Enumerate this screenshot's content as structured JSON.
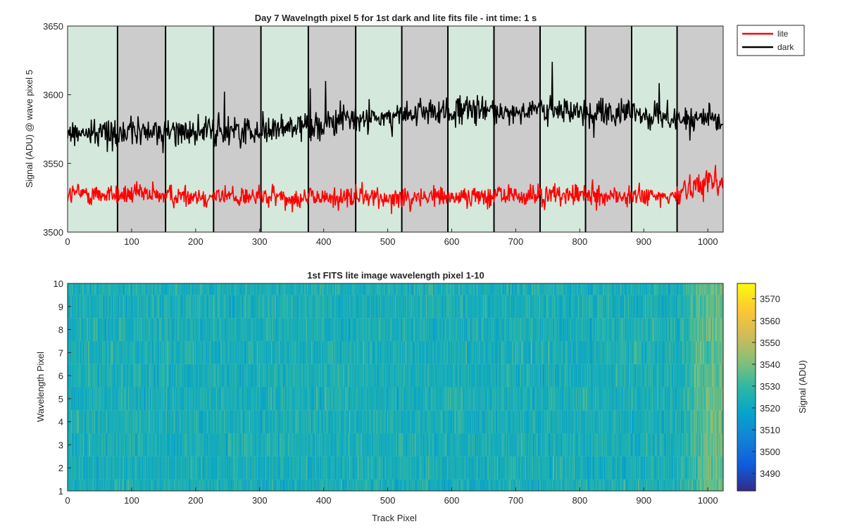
{
  "chart_data": [
    {
      "type": "line",
      "title": "Day 7 Wavelngth pixel 5 for 1st dark and lite fits file - int time: 1 s",
      "xlabel": "",
      "ylabel": "Signal (ADU) @ wave pixel 5",
      "xlim": [
        0,
        1024
      ],
      "ylim": [
        3500,
        3650
      ],
      "xticks": [
        0,
        100,
        200,
        300,
        400,
        500,
        600,
        700,
        800,
        900,
        1000
      ],
      "yticks": [
        3500,
        3550,
        3600,
        3650
      ],
      "grid": false,
      "legend_position": "outside-top-right",
      "background_bands": {
        "boundaries": [
          0,
          78,
          153,
          228,
          302,
          376,
          450,
          522,
          594,
          666,
          738,
          809,
          881,
          952,
          1024
        ],
        "colors": [
          "#d5e8dc",
          "#cccccc"
        ],
        "divider_color": "#000000"
      },
      "series": [
        {
          "name": "lite",
          "color": "#ff0000",
          "noise_amplitude": 7,
          "anchors": [
            [
              0,
              3528
            ],
            [
              400,
              3525
            ],
            [
              800,
              3527
            ],
            [
              950,
              3525
            ],
            [
              965,
              3532
            ],
            [
              1000,
              3538
            ],
            [
              1024,
              3535
            ]
          ]
        },
        {
          "name": "dark",
          "color": "#000000",
          "noise_amplitude": 9,
          "anchors": [
            [
              0,
              3572
            ],
            [
              300,
              3574
            ],
            [
              450,
              3582
            ],
            [
              600,
              3588
            ],
            [
              800,
              3588
            ],
            [
              950,
              3583
            ],
            [
              1024,
              3580
            ]
          ]
        }
      ]
    },
    {
      "type": "heatmap",
      "title": "1st FITS lite image wavelength pixel 1-10",
      "xlabel": "Track Pixel",
      "ylabel": "Wavelength Pixel",
      "xlim": [
        0,
        1024
      ],
      "ylim": [
        1,
        10
      ],
      "xticks": [
        0,
        100,
        200,
        300,
        400,
        500,
        600,
        700,
        800,
        900,
        1000
      ],
      "yticks": [
        1,
        2,
        3,
        4,
        5,
        6,
        7,
        8,
        9,
        10
      ],
      "colorbar": {
        "label": "Signal (ADU)",
        "limits": [
          3482,
          3577
        ],
        "ticks": [
          3490,
          3500,
          3510,
          3520,
          3530,
          3540,
          3550,
          3560,
          3570
        ],
        "colormap": [
          "#352a87",
          "#0f5cdd",
          "#1481d6",
          "#06a4ca",
          "#2eb7a4",
          "#87bf77",
          "#d1bb59",
          "#fec832",
          "#f9fb0e"
        ]
      },
      "base_level": 3524,
      "noise_amplitude": 9,
      "edge_rise": {
        "start": 955,
        "end": 1024,
        "amount": 16
      }
    }
  ]
}
